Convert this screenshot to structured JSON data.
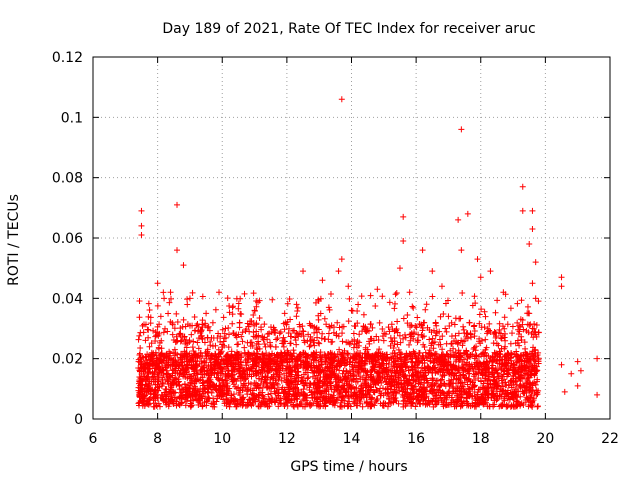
{
  "chart_data": {
    "type": "scatter",
    "title": "Day 189 of 2021, Rate Of TEC Index for receiver aruc",
    "xlabel": "GPS time / hours",
    "ylabel": "ROTI / TECUs",
    "xlim": [
      6,
      22
    ],
    "ylim": [
      0,
      0.12
    ],
    "xticks": [
      "6",
      "8",
      "10",
      "12",
      "14",
      "16",
      "18",
      "20",
      "22"
    ],
    "yticks": [
      "0",
      "0.02",
      "0.04",
      "0.06",
      "0.08",
      "0.1",
      "0.12"
    ],
    "grid": true,
    "marker": "+",
    "color": "#ff0000",
    "points": [
      [
        7.5,
        0.069
      ],
      [
        7.5,
        0.061
      ],
      [
        7.5,
        0.064
      ],
      [
        8.6,
        0.071
      ],
      [
        8.6,
        0.056
      ],
      [
        8.8,
        0.051
      ],
      [
        8.0,
        0.045
      ],
      [
        8.2,
        0.04
      ],
      [
        8.4,
        0.042
      ],
      [
        9.0,
        0.04
      ],
      [
        9.5,
        0.035
      ],
      [
        9.9,
        0.042
      ],
      [
        10.1,
        0.03
      ],
      [
        10.5,
        0.028
      ],
      [
        11.0,
        0.036
      ],
      [
        11.5,
        0.024
      ],
      [
        12.1,
        0.033
      ],
      [
        12.3,
        0.038
      ],
      [
        12.5,
        0.049
      ],
      [
        13.1,
        0.046
      ],
      [
        13.3,
        0.037
      ],
      [
        13.7,
        0.106
      ],
      [
        13.7,
        0.053
      ],
      [
        13.6,
        0.049
      ],
      [
        13.9,
        0.044
      ],
      [
        14.0,
        0.036
      ],
      [
        14.8,
        0.043
      ],
      [
        15.5,
        0.05
      ],
      [
        15.6,
        0.067
      ],
      [
        15.6,
        0.059
      ],
      [
        15.8,
        0.042
      ],
      [
        16.2,
        0.056
      ],
      [
        16.5,
        0.049
      ],
      [
        16.8,
        0.044
      ],
      [
        17.3,
        0.066
      ],
      [
        17.4,
        0.096
      ],
      [
        17.4,
        0.056
      ],
      [
        17.6,
        0.068
      ],
      [
        17.9,
        0.053
      ],
      [
        18.0,
        0.047
      ],
      [
        18.3,
        0.049
      ],
      [
        18.7,
        0.042
      ],
      [
        19.3,
        0.077
      ],
      [
        19.3,
        0.069
      ],
      [
        19.5,
        0.058
      ],
      [
        19.6,
        0.069
      ],
      [
        19.6,
        0.063
      ],
      [
        19.7,
        0.052
      ],
      [
        19.6,
        0.045
      ],
      [
        19.7,
        0.04
      ],
      [
        19.5,
        0.035
      ],
      [
        19.6,
        0.03
      ],
      [
        20.5,
        0.047
      ],
      [
        20.5,
        0.044
      ],
      [
        20.5,
        0.018
      ],
      [
        20.8,
        0.015
      ],
      [
        21.0,
        0.019
      ],
      [
        21.1,
        0.016
      ],
      [
        21.0,
        0.011
      ],
      [
        21.6,
        0.02
      ],
      [
        21.6,
        0.008
      ],
      [
        20.6,
        0.009
      ],
      [
        17.0,
        0.034
      ],
      [
        16.9,
        0.03
      ],
      [
        17.8,
        0.031
      ],
      [
        18.5,
        0.025
      ],
      [
        15.0,
        0.026
      ],
      [
        14.5,
        0.023
      ],
      [
        13.0,
        0.025
      ],
      [
        12.7,
        0.024
      ],
      [
        11.3,
        0.027
      ],
      [
        9.2,
        0.031
      ],
      [
        8.3,
        0.029
      ],
      [
        8.1,
        0.034
      ],
      [
        10.8,
        0.022
      ]
    ],
    "cluster_seed_note": ""
  }
}
